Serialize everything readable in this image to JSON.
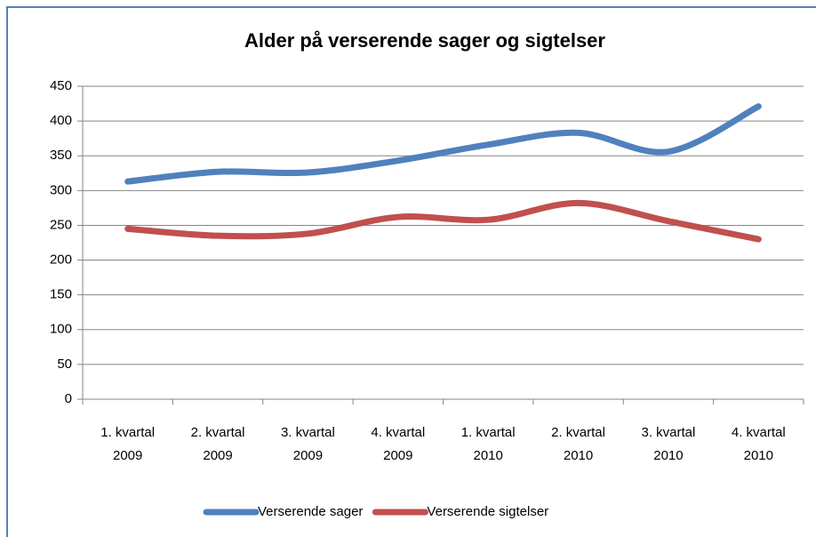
{
  "chart_data": {
    "type": "line",
    "title": "Alder på verserende sager og sigtelser",
    "categories": [
      [
        "1. kvartal",
        "2009"
      ],
      [
        "2. kvartal",
        "2009"
      ],
      [
        "3. kvartal",
        "2009"
      ],
      [
        "4. kvartal",
        "2009"
      ],
      [
        "1. kvartal",
        "2010"
      ],
      [
        "2. kvartal",
        "2010"
      ],
      [
        "3. kvartal",
        "2010"
      ],
      [
        "4. kvartal",
        "2010"
      ]
    ],
    "series": [
      {
        "name": "Verserende sager",
        "color": "#4f81bd",
        "values": [
          313,
          327,
          326,
          343,
          366,
          383,
          356,
          421
        ]
      },
      {
        "name": "Verserende sigtelser",
        "color": "#c0504d",
        "values": [
          245,
          235,
          238,
          262,
          258,
          282,
          256,
          230
        ]
      }
    ],
    "ylim": [
      0,
      450
    ],
    "yticks": [
      0,
      50,
      100,
      150,
      200,
      250,
      300,
      350,
      400,
      450
    ],
    "grid": true,
    "smooth": true,
    "legend": "bottom"
  }
}
